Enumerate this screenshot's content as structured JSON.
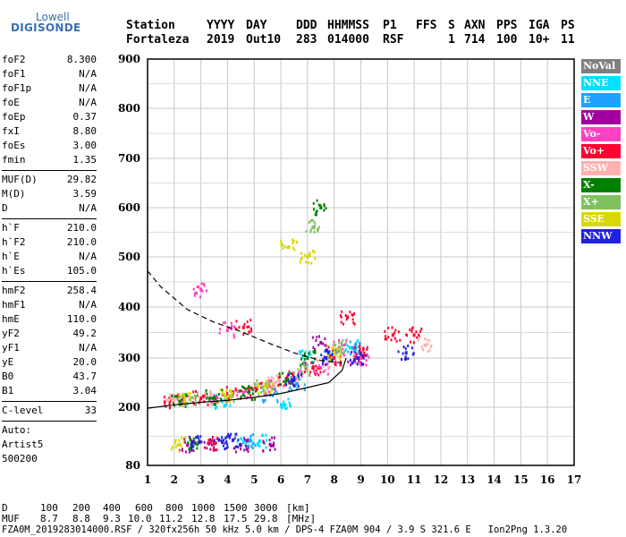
{
  "logo": {
    "top": "Lowell",
    "bottom": "DIGISONDE"
  },
  "header": {
    "row1": [
      "Station",
      "YYYY",
      "DAY",
      "DDD",
      "HHMMSS",
      "P1",
      "FFS",
      "S",
      "AXN",
      "PPS",
      "IGA",
      "PS"
    ],
    "row2": [
      "Fortaleza",
      "2019",
      "Out10",
      "283",
      "014000",
      "RSF",
      "1",
      "714",
      "100",
      "10+",
      "11"
    ]
  },
  "params": {
    "group1": [
      {
        "k": "foF2",
        "v": "8.300"
      },
      {
        "k": "foF1",
        "v": "N/A"
      },
      {
        "k": "foF1p",
        "v": "N/A"
      },
      {
        "k": "foE",
        "v": "N/A"
      },
      {
        "k": "foEp",
        "v": "0.37"
      },
      {
        "k": "fxI",
        "v": "8.80"
      },
      {
        "k": "foEs",
        "v": "3.00"
      },
      {
        "k": "fmin",
        "v": "1.35"
      }
    ],
    "group2": [
      {
        "k": "MUF(D)",
        "v": "29.82"
      },
      {
        "k": "M(D)",
        "v": "3.59"
      },
      {
        "k": "D",
        "v": "N/A"
      }
    ],
    "group3": [
      {
        "k": "h`F",
        "v": "210.0"
      },
      {
        "k": "h`F2",
        "v": "210.0"
      },
      {
        "k": "h`E",
        "v": "N/A"
      },
      {
        "k": "h`Es",
        "v": "105.0"
      }
    ],
    "group4": [
      {
        "k": "hmF2",
        "v": "258.4"
      },
      {
        "k": "hmF1",
        "v": "N/A"
      },
      {
        "k": "hmE",
        "v": "110.0"
      },
      {
        "k": "yF2",
        "v": "49.2"
      },
      {
        "k": "yF1",
        "v": "N/A"
      },
      {
        "k": "yE",
        "v": "20.0"
      },
      {
        "k": "B0",
        "v": "43.7"
      },
      {
        "k": "B1",
        "v": "3.04"
      }
    ],
    "group5": [
      {
        "k": "C-level",
        "v": "33"
      }
    ],
    "auto": [
      "Auto:",
      "Artist5",
      "500200"
    ]
  },
  "legend": [
    {
      "label": "NoVal",
      "color": "#808080"
    },
    {
      "label": "NNE",
      "color": "#00e0ff"
    },
    {
      "label": "E",
      "color": "#20a0ff"
    },
    {
      "label": "W",
      "color": "#a000a0"
    },
    {
      "label": "Vo-",
      "color": "#ff40c0"
    },
    {
      "label": "Vo+",
      "color": "#ff0030"
    },
    {
      "label": "SSW",
      "color": "#ffb0b0"
    },
    {
      "label": "X-",
      "color": "#008000"
    },
    {
      "label": "X+",
      "color": "#80c060"
    },
    {
      "label": "SSE",
      "color": "#d8d800"
    },
    {
      "label": "NNW",
      "color": "#2020e0"
    }
  ],
  "bottom": {
    "d_label": "D",
    "d_values": [
      "100",
      "200",
      "400",
      "600",
      "800",
      "1000",
      "1500",
      "3000",
      "[km]"
    ],
    "muf_label": "MUF",
    "muf_values": [
      "8.7",
      "8.8",
      "9.3",
      "10.0",
      "11.2",
      "12.8",
      "17.5",
      "29.8",
      "[MHz]"
    ],
    "footer": "FZA0M_2019283014000.RSF / 320fx256h 50 kHz 5.0 km / DPS-4 FZA0M 904 / 3.9 S 321.6 E   Ion2Png 1.3.20"
  },
  "chart_data": {
    "type": "scatter",
    "title": "",
    "xlabel": "",
    "ylabel": "",
    "xlim": [
      1,
      17
    ],
    "ylim": [
      80,
      900
    ],
    "x_ticks": [
      1,
      2,
      3,
      4,
      5,
      6,
      7,
      8,
      9,
      10,
      11,
      12,
      13,
      14,
      15,
      16,
      17
    ],
    "y_ticks": [
      80,
      200,
      300,
      400,
      500,
      600,
      700,
      800,
      900
    ],
    "grid": true,
    "legend_position": "right",
    "series": [
      {
        "name": "NNE",
        "color": "#00e0ff",
        "values": [
          [
            4.6,
            128
          ],
          [
            5.2,
            130
          ],
          [
            6.1,
            205
          ],
          [
            3.8,
            212
          ],
          [
            7.0,
            300
          ],
          [
            8.6,
            320
          ]
        ]
      },
      {
        "name": "E",
        "color": "#20a0ff",
        "values": [
          [
            4.8,
            130
          ],
          [
            5.6,
            225
          ],
          [
            6.6,
            248
          ],
          [
            7.8,
            300
          ],
          [
            8.7,
            320
          ]
        ]
      },
      {
        "name": "W",
        "color": "#a000a0",
        "values": [
          [
            2.5,
            122
          ],
          [
            3.3,
            125
          ],
          [
            4.5,
            122
          ],
          [
            5.6,
            123
          ],
          [
            7.5,
            330
          ],
          [
            8.8,
            300
          ]
        ]
      },
      {
        "name": "Vo-",
        "color": "#ff40c0",
        "values": [
          [
            2.3,
            214
          ],
          [
            3.6,
            220
          ],
          [
            4.6,
            230
          ],
          [
            5.5,
            240
          ],
          [
            6.5,
            260
          ],
          [
            7.5,
            280
          ],
          [
            8.2,
            320
          ],
          [
            9.0,
            300
          ],
          [
            3.0,
            435
          ],
          [
            4.0,
            355
          ]
        ]
      },
      {
        "name": "Vo+",
        "color": "#ff0030",
        "values": [
          [
            1.9,
            213
          ],
          [
            3.0,
            218
          ],
          [
            4.2,
            228
          ],
          [
            5.1,
            238
          ],
          [
            6.2,
            258
          ],
          [
            7.2,
            280
          ],
          [
            8.0,
            300
          ],
          [
            8.5,
            380
          ],
          [
            9.0,
            310
          ],
          [
            10.2,
            345
          ],
          [
            11.0,
            345
          ],
          [
            3.5,
            125
          ],
          [
            4.6,
            360
          ]
        ]
      },
      {
        "name": "SSW",
        "color": "#ffb0b0",
        "values": [
          [
            2.0,
            216
          ],
          [
            3.4,
            220
          ],
          [
            5.8,
            250
          ],
          [
            7.6,
            290
          ],
          [
            11.4,
            325
          ]
        ]
      },
      {
        "name": "X-",
        "color": "#008000",
        "values": [
          [
            2.2,
            212
          ],
          [
            3.5,
            220
          ],
          [
            4.8,
            230
          ],
          [
            6.2,
            255
          ],
          [
            7.0,
            300
          ],
          [
            7.5,
            600
          ],
          [
            2.8,
            125
          ]
        ]
      },
      {
        "name": "X+",
        "color": "#80c060",
        "values": [
          [
            2.6,
            215
          ],
          [
            4.1,
            222
          ],
          [
            5.3,
            240
          ],
          [
            6.8,
            270
          ],
          [
            7.2,
            560
          ],
          [
            8.2,
            320
          ]
        ]
      },
      {
        "name": "SSE",
        "color": "#d8d800",
        "values": [
          [
            2.4,
            215
          ],
          [
            3.9,
            222
          ],
          [
            5.4,
            242
          ],
          [
            6.3,
            520
          ],
          [
            7.0,
            500
          ],
          [
            8.0,
            310
          ],
          [
            2.2,
            123
          ]
        ]
      },
      {
        "name": "NNW",
        "color": "#2020e0",
        "values": [
          [
            2.7,
            128
          ],
          [
            3.8,
            128
          ],
          [
            4.2,
            132
          ],
          [
            6.5,
            255
          ],
          [
            7.7,
            300
          ],
          [
            8.9,
            300
          ],
          [
            10.7,
            310
          ]
        ]
      }
    ],
    "curves": [
      {
        "name": "profile",
        "style": "solid",
        "points": [
          [
            1.0,
            198
          ],
          [
            2,
            205
          ],
          [
            3,
            210
          ],
          [
            4,
            214
          ],
          [
            5,
            220
          ],
          [
            6,
            228
          ],
          [
            7,
            240
          ],
          [
            7.8,
            250
          ],
          [
            8.3,
            275
          ],
          [
            8.45,
            300
          ]
        ]
      },
      {
        "name": "profile-dashed",
        "style": "dashed",
        "points": [
          [
            1.0,
            472
          ],
          [
            1.5,
            440
          ],
          [
            2.5,
            395
          ],
          [
            3.5,
            370
          ],
          [
            4.5,
            352
          ],
          [
            5.5,
            330
          ],
          [
            6.5,
            310
          ],
          [
            7.5,
            295
          ],
          [
            8.3,
            290
          ]
        ]
      }
    ]
  }
}
